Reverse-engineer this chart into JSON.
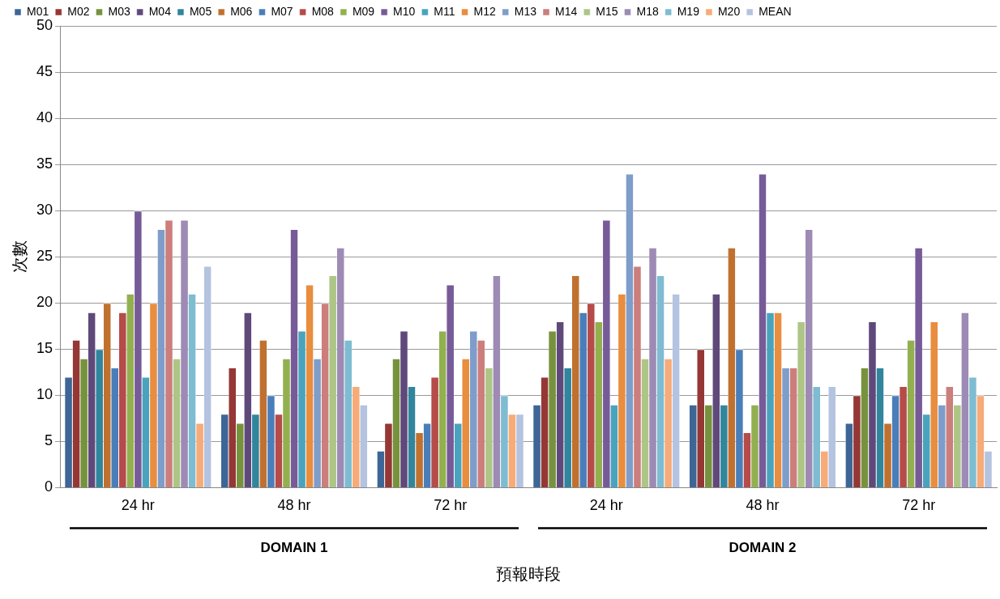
{
  "chart_data": {
    "type": "bar",
    "xlabel": "預報時段",
    "ylabel": "次數",
    "categories": [
      "24 hr",
      "48 hr",
      "72 hr",
      "24 hr",
      "48 hr",
      "72 hr"
    ],
    "annotations": [
      "DOMAIN 1",
      "DOMAIN 2"
    ],
    "ylim": [
      0,
      50
    ],
    "yticks": [
      0,
      5,
      10,
      15,
      20,
      25,
      30,
      35,
      40,
      45,
      50
    ],
    "grid": "y",
    "legend": "top",
    "series": [
      {
        "name": "M01",
        "color": "#3d6697",
        "values": [
          12,
          8,
          4,
          9,
          9,
          7
        ]
      },
      {
        "name": "M02",
        "color": "#953735",
        "values": [
          16,
          13,
          7,
          12,
          15,
          10
        ]
      },
      {
        "name": "M03",
        "color": "#77923c",
        "values": [
          14,
          7,
          14,
          17,
          9,
          13
        ]
      },
      {
        "name": "M04",
        "color": "#5f497a",
        "values": [
          19,
          19,
          17,
          18,
          21,
          18
        ]
      },
      {
        "name": "M05",
        "color": "#31859c",
        "values": [
          15,
          8,
          11,
          13,
          9,
          13
        ]
      },
      {
        "name": "M06",
        "color": "#c0712f",
        "values": [
          20,
          16,
          6,
          23,
          26,
          7
        ]
      },
      {
        "name": "M07",
        "color": "#4a7ebb",
        "values": [
          13,
          10,
          7,
          19,
          15,
          10
        ]
      },
      {
        "name": "M08",
        "color": "#b64b4a",
        "values": [
          19,
          8,
          12,
          20,
          6,
          11
        ]
      },
      {
        "name": "M09",
        "color": "#93b050",
        "values": [
          21,
          14,
          17,
          18,
          9,
          16
        ]
      },
      {
        "name": "M10",
        "color": "#775b98",
        "values": [
          30,
          28,
          22,
          29,
          34,
          26
        ]
      },
      {
        "name": "M11",
        "color": "#4aa3bc",
        "values": [
          12,
          17,
          7,
          9,
          19,
          8
        ]
      },
      {
        "name": "M12",
        "color": "#e98d3f",
        "values": [
          20,
          22,
          14,
          21,
          19,
          18
        ]
      },
      {
        "name": "M13",
        "color": "#7f9dca",
        "values": [
          28,
          14,
          17,
          34,
          13,
          9
        ]
      },
      {
        "name": "M14",
        "color": "#cc7e7c",
        "values": [
          29,
          20,
          16,
          24,
          13,
          11
        ]
      },
      {
        "name": "M15",
        "color": "#adc686",
        "values": [
          14,
          23,
          13,
          14,
          18,
          9
        ]
      },
      {
        "name": "M18",
        "color": "#9d8bb5",
        "values": [
          29,
          26,
          23,
          26,
          28,
          19
        ]
      },
      {
        "name": "M19",
        "color": "#7ebcd1",
        "values": [
          21,
          16,
          10,
          23,
          11,
          12
        ]
      },
      {
        "name": "M20",
        "color": "#f7ab78",
        "values": [
          7,
          11,
          8,
          14,
          4,
          10
        ]
      },
      {
        "name": "MEAN",
        "color": "#b4c3df",
        "values": [
          24,
          9,
          8,
          21,
          11,
          4
        ]
      }
    ]
  }
}
